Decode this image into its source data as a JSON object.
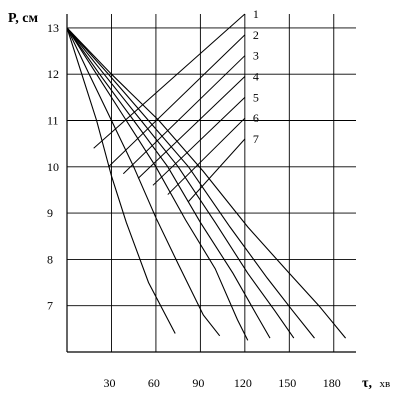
{
  "chart_data": {
    "type": "line",
    "ylabel": "P, см",
    "xlabel": "τ, хв",
    "xlabel_main": "τ,",
    "xlabel_unit": "хв",
    "x_ticks": [
      "30",
      "60",
      "90",
      "120",
      "150",
      "180"
    ],
    "y_ticks": [
      "13",
      "12",
      "11",
      "10",
      "9",
      "8",
      "7"
    ],
    "xlim": [
      0,
      195
    ],
    "ylim": [
      6.0,
      13.3
    ],
    "grid": true,
    "line_color": "#000000",
    "series": [
      {
        "name": "1",
        "values": [
          [
            0,
            13.0
          ],
          [
            10,
            12.0
          ],
          [
            20,
            11.0
          ],
          [
            30,
            9.8
          ],
          [
            40,
            8.8
          ],
          [
            55,
            7.5
          ],
          [
            73,
            6.4
          ]
        ]
      },
      {
        "name": "2",
        "values": [
          [
            0,
            13.0
          ],
          [
            15,
            12.0
          ],
          [
            30,
            11.0
          ],
          [
            45,
            10.0
          ],
          [
            60,
            8.9
          ],
          [
            75,
            7.9
          ],
          [
            92,
            6.8
          ],
          [
            103,
            6.35
          ]
        ]
      },
      {
        "name": "3",
        "values": [
          [
            0,
            13.0
          ],
          [
            20,
            12.0
          ],
          [
            40,
            11.0
          ],
          [
            60,
            10.0
          ],
          [
            80,
            8.85
          ],
          [
            100,
            7.8
          ],
          [
            115,
            6.7
          ],
          [
            122,
            6.25
          ]
        ]
      },
      {
        "name": "4",
        "values": [
          [
            0,
            13.0
          ],
          [
            22,
            12.0
          ],
          [
            45,
            11.0
          ],
          [
            68,
            10.0
          ],
          [
            90,
            8.8
          ],
          [
            112,
            7.7
          ],
          [
            128,
            6.8
          ],
          [
            137,
            6.3
          ]
        ]
      },
      {
        "name": "5",
        "values": [
          [
            0,
            13.0
          ],
          [
            25,
            12.0
          ],
          [
            50,
            11.0
          ],
          [
            75,
            10.0
          ],
          [
            100,
            8.8
          ],
          [
            122,
            7.7
          ],
          [
            140,
            6.9
          ],
          [
            153,
            6.3
          ]
        ]
      },
      {
        "name": "6",
        "values": [
          [
            0,
            13.0
          ],
          [
            28,
            12.0
          ],
          [
            55,
            11.0
          ],
          [
            82,
            10.0
          ],
          [
            110,
            8.7
          ],
          [
            135,
            7.6
          ],
          [
            152,
            6.9
          ],
          [
            167,
            6.3
          ]
        ]
      },
      {
        "name": "7",
        "values": [
          [
            0,
            13.0
          ],
          [
            30,
            12.0
          ],
          [
            62,
            11.0
          ],
          [
            92,
            9.9
          ],
          [
            122,
            8.7
          ],
          [
            150,
            7.7
          ],
          [
            170,
            7.0
          ],
          [
            188,
            6.3
          ]
        ]
      }
    ],
    "label_leaders": [
      {
        "name": "1",
        "from": [
          18,
          10.4
        ],
        "to": [
          120,
          13.3
        ]
      },
      {
        "name": "2",
        "from": [
          28,
          10.0
        ],
        "to": [
          120,
          12.85
        ]
      },
      {
        "name": "3",
        "from": [
          38,
          9.85
        ],
        "to": [
          120,
          12.4
        ]
      },
      {
        "name": "4",
        "from": [
          48,
          9.75
        ],
        "to": [
          120,
          11.95
        ]
      },
      {
        "name": "5",
        "from": [
          58,
          9.6
        ],
        "to": [
          120,
          11.5
        ]
      },
      {
        "name": "6",
        "from": [
          68,
          9.4
        ],
        "to": [
          120,
          11.05
        ]
      },
      {
        "name": "7",
        "from": [
          82,
          9.25
        ],
        "to": [
          120,
          10.6
        ]
      }
    ]
  }
}
